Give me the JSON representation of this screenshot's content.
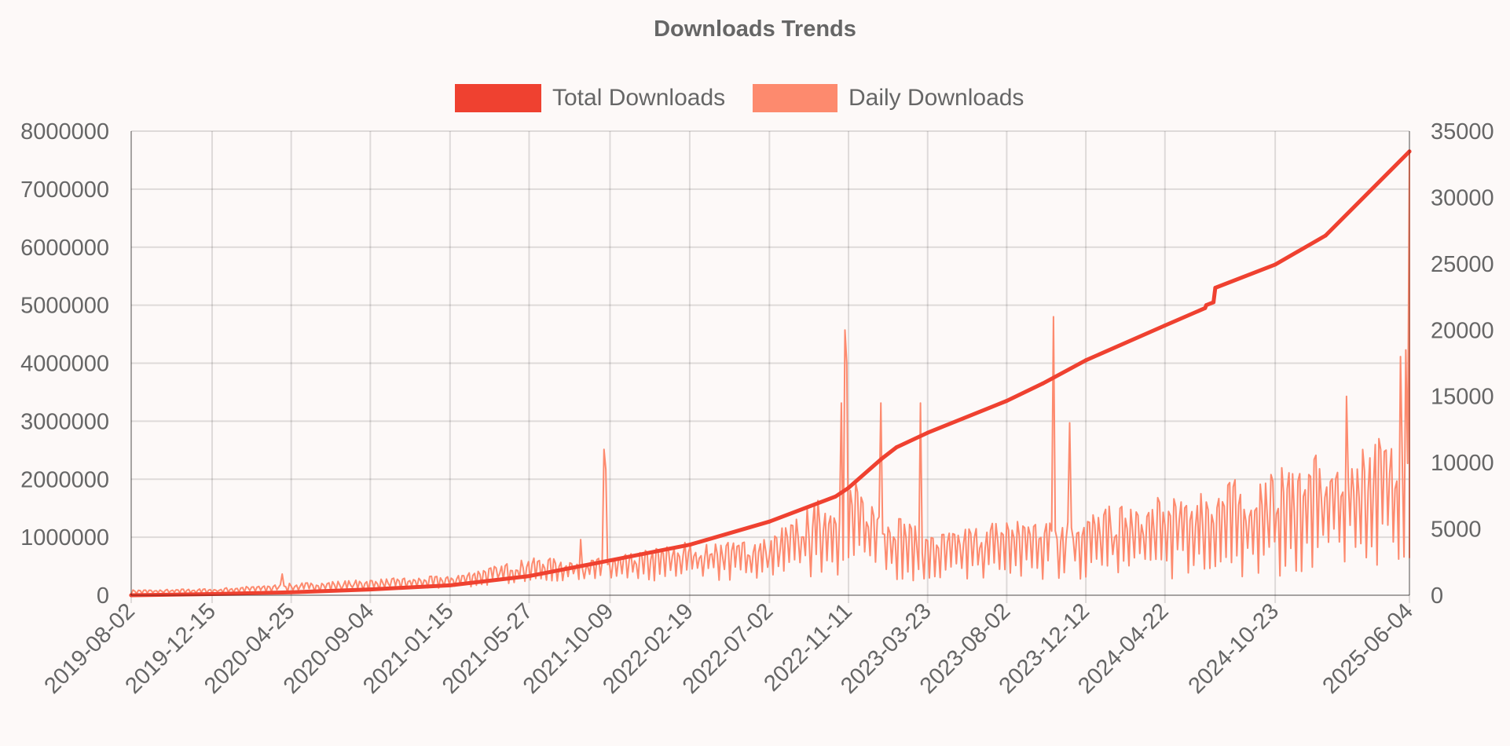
{
  "chart_data": {
    "type": "line",
    "title": "Downloads Trends",
    "legend_position": "top-center",
    "grid": true,
    "x_ticks": [
      "2019-08-02",
      "2019-12-15",
      "2020-04-25",
      "2020-09-04",
      "2021-01-15",
      "2021-05-27",
      "2021-10-09",
      "2022-02-19",
      "2022-07-02",
      "2022-11-11",
      "2023-03-23",
      "2023-08-02",
      "2023-12-12",
      "2024-04-22",
      "2024-10-23",
      "2025-06-04"
    ],
    "xlim": [
      "2019-08-02",
      "2025-06-04"
    ],
    "y_left": {
      "ticks": [
        0,
        1000000,
        2000000,
        3000000,
        4000000,
        5000000,
        6000000,
        7000000,
        8000000
      ],
      "range": [
        0,
        8000000
      ]
    },
    "y_right": {
      "ticks": [
        0,
        5000,
        10000,
        15000,
        20000,
        25000,
        30000,
        35000
      ],
      "range": [
        0,
        35000
      ]
    },
    "series": [
      {
        "name": "Total Downloads",
        "axis": "left",
        "color": "#ef4130",
        "points": [
          [
            "2019-08-02",
            0
          ],
          [
            "2019-12-15",
            20000
          ],
          [
            "2020-04-25",
            50000
          ],
          [
            "2020-09-04",
            100000
          ],
          [
            "2021-01-15",
            170000
          ],
          [
            "2021-05-27",
            330000
          ],
          [
            "2021-10-09",
            600000
          ],
          [
            "2022-02-19",
            870000
          ],
          [
            "2022-07-02",
            1270000
          ],
          [
            "2022-10-20",
            1700000
          ],
          [
            "2022-11-11",
            1850000
          ],
          [
            "2023-01-05",
            2350000
          ],
          [
            "2023-01-30",
            2550000
          ],
          [
            "2023-03-23",
            2800000
          ],
          [
            "2023-08-02",
            3350000
          ],
          [
            "2023-10-01",
            3650000
          ],
          [
            "2023-12-12",
            4050000
          ],
          [
            "2024-04-22",
            4650000
          ],
          [
            "2024-06-28",
            4950000
          ],
          [
            "2024-06-30",
            5000000
          ],
          [
            "2024-07-12",
            5050000
          ],
          [
            "2024-07-15",
            5300000
          ],
          [
            "2024-10-23",
            5700000
          ],
          [
            "2025-01-15",
            6200000
          ],
          [
            "2025-06-04",
            7650000
          ]
        ]
      },
      {
        "name": "Daily Downloads",
        "axis": "right",
        "color": "#fd8a6e",
        "envelope": [
          [
            "2019-08-02",
            100,
            400
          ],
          [
            "2019-12-15",
            150,
            500
          ],
          [
            "2020-04-25",
            250,
            900
          ],
          [
            "2020-09-04",
            350,
            1200
          ],
          [
            "2021-01-15",
            500,
            1500
          ],
          [
            "2021-05-27",
            1000,
            2800
          ],
          [
            "2021-10-09",
            1000,
            2800
          ],
          [
            "2022-02-19",
            1000,
            4200
          ],
          [
            "2022-07-02",
            1000,
            4500
          ],
          [
            "2022-11-11",
            1500,
            9000
          ],
          [
            "2023-03-23",
            1000,
            4500
          ],
          [
            "2023-08-02",
            1000,
            6000
          ],
          [
            "2023-12-12",
            1000,
            6500
          ],
          [
            "2024-04-22",
            1200,
            7500
          ],
          [
            "2024-10-23",
            1300,
            9500
          ],
          [
            "2025-06-04",
            2500,
            13000
          ]
        ],
        "spikes": [
          [
            "2020-04-10",
            1600
          ],
          [
            "2021-08-20",
            4200
          ],
          [
            "2021-09-28",
            11000
          ],
          [
            "2021-10-01",
            9500
          ],
          [
            "2022-10-30",
            14500
          ],
          [
            "2022-11-05",
            20000
          ],
          [
            "2022-11-09",
            17500
          ],
          [
            "2023-01-05",
            14500
          ],
          [
            "2023-03-10",
            14500
          ],
          [
            "2023-10-20",
            21000
          ],
          [
            "2023-11-15",
            13000
          ],
          [
            "2025-02-20",
            15000
          ],
          [
            "2025-05-20",
            18000
          ],
          [
            "2025-05-28",
            18500
          ],
          [
            "2025-06-03",
            33500
          ]
        ]
      }
    ]
  }
}
